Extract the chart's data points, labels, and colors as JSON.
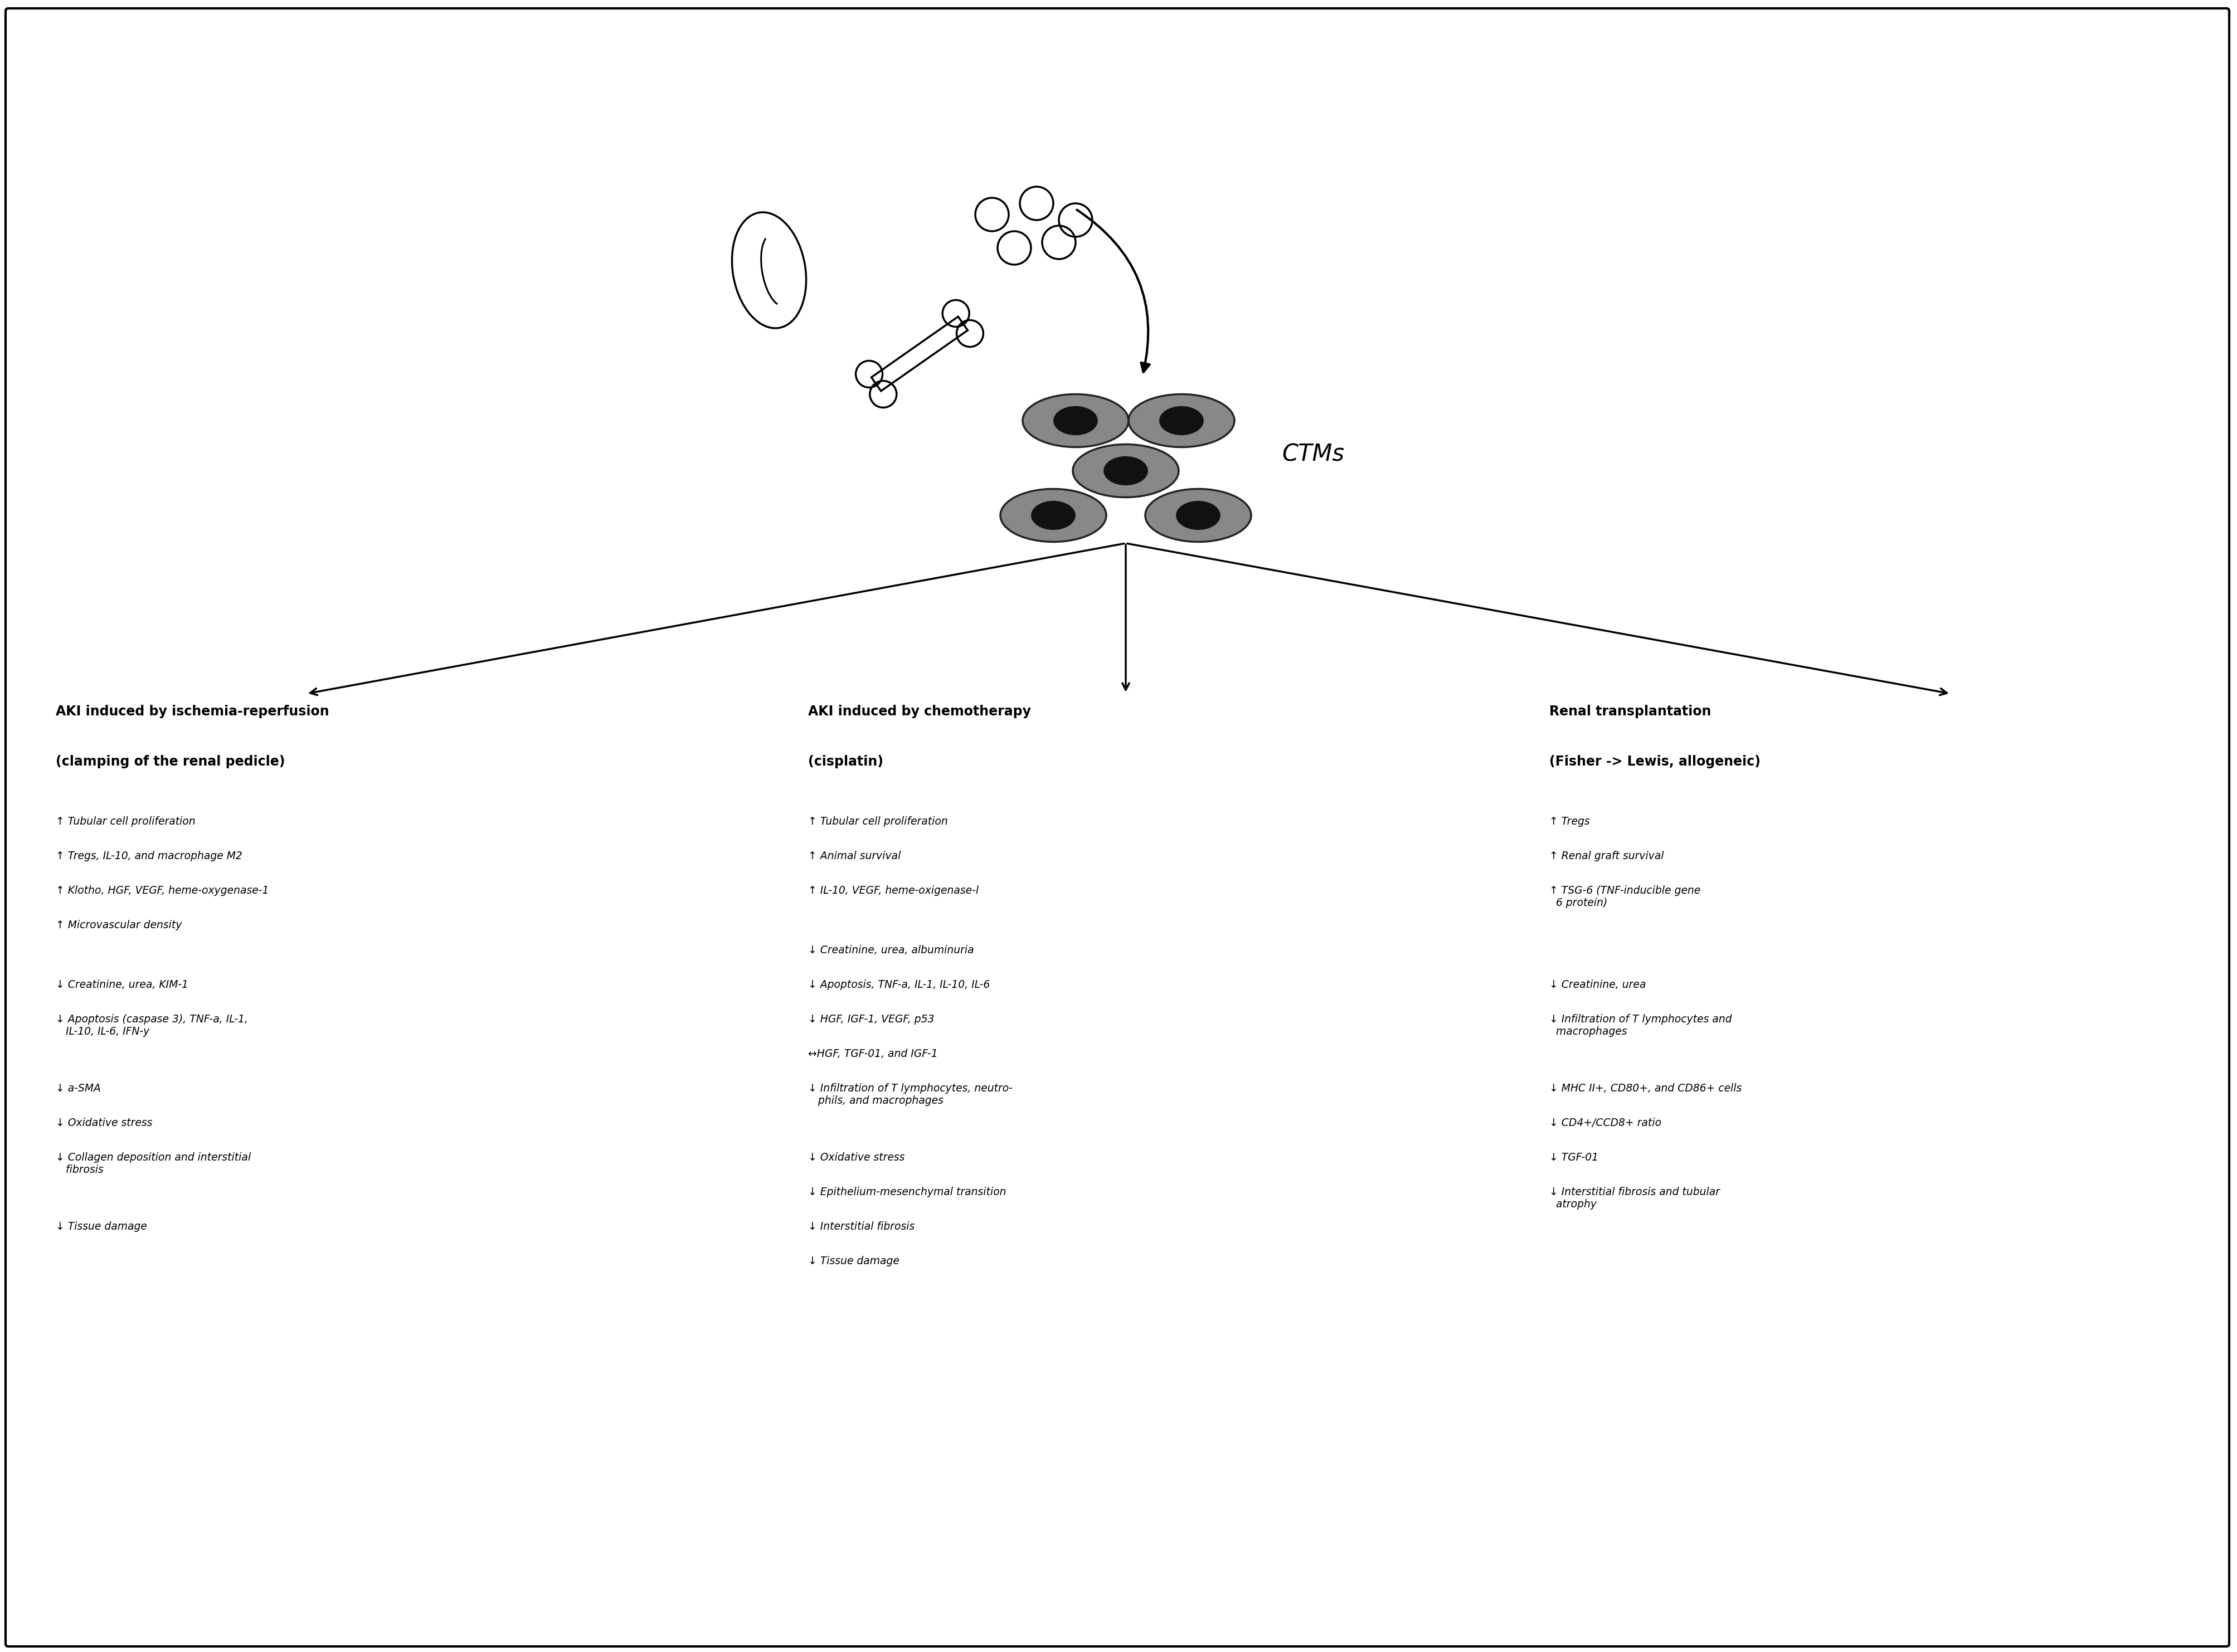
{
  "ctms_label": "CTMs",
  "col1_title_line1": "AKI induced by ischemia-reperfusion",
  "col1_title_line2": "(clamping of the renal pedicle)",
  "col2_title_line1": "AKI induced by chemotherapy",
  "col2_title_line2": "(cisplatin)",
  "col3_title_line1": "Renal transplantation",
  "col3_title_line2": "(Fisher -> Lewis, allogeneic)",
  "col1_up": [
    "↑ Tubular cell proliferation",
    "↑ Tregs, IL-10, and macrophage M2",
    "↑ Klotho, HGF, VEGF, heme-oxygenase-1",
    "↑ Microvascular density"
  ],
  "col1_down": [
    "↓ Creatinine, urea, KIM-1",
    "↓ Apoptosis (caspase 3), TNF-a, IL-1,\n   IL-10, IL-6, IFN-y",
    "↓ a-SMA",
    "↓ Oxidative stress",
    "↓ Collagen deposition and interstitial\n   fibrosis",
    "↓ Tissue damage"
  ],
  "col2_up": [
    "↑ Tubular cell proliferation",
    "↑ Animal survival",
    "↑ IL-10, VEGF, heme-oxigenase-l"
  ],
  "col2_down": [
    "↓ Creatinine, urea, albuminuria",
    "↓ Apoptosis, TNF-a, IL-1, IL-10, IL-6",
    "↓ HGF, IGF-1, VEGF, p53",
    "↔HGF, TGF-01, and IGF-1",
    "↓ Infiltration of T lymphocytes, neutro-\n   phils, and macrophages",
    "↓ Oxidative stress",
    "↓ Epithelium-mesenchymal transition",
    "↓ Interstitial fibrosis",
    "↓ Tissue damage"
  ],
  "col3_up": [
    "↑ Tregs",
    "↑ Renal graft survival",
    "↑ TSG-6 (TNF-inducible gene\n  6 protein)"
  ],
  "col3_down": [
    "↓ Creatinine, urea",
    "↓ Infiltration of T lymphocytes and\n  macrophages",
    "↓ MHC II+, CD80+, and CD86+ cells",
    "↓ CD4+/CCD8+ ratio",
    "↓ TGF-01",
    "↓ Interstitial fibrosis and tubular\n  atrophy"
  ],
  "bg_color": "#ffffff",
  "cell_gray": "#888888",
  "cell_dark": "#111111",
  "cell_edge": "#222222"
}
